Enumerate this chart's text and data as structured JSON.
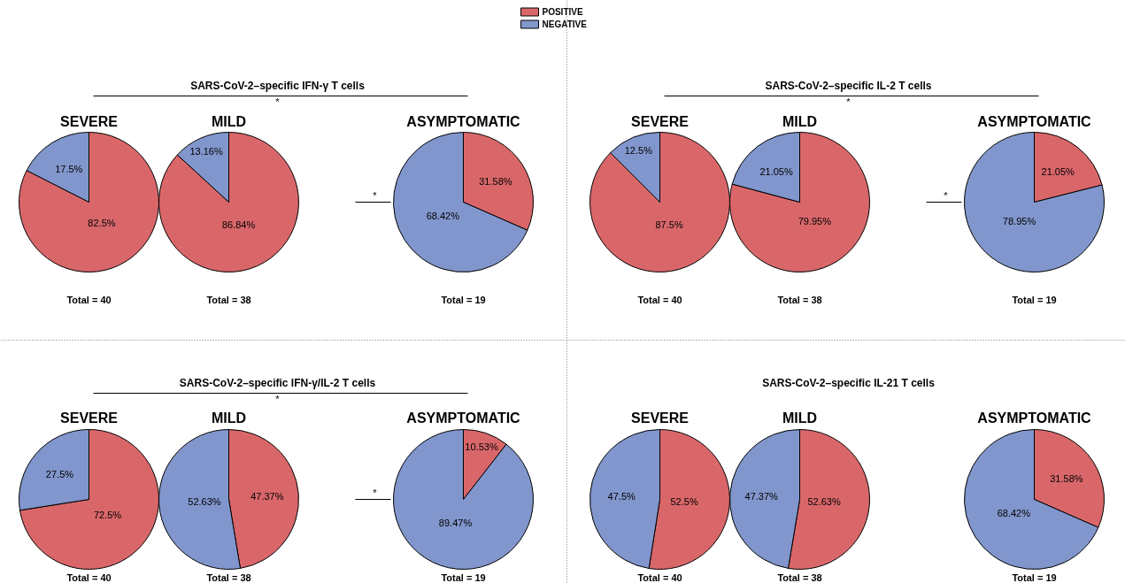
{
  "chart_data": [
    {
      "type": "pie",
      "subtitle": "SEVERE",
      "categories": [
        "POSITIVE",
        "NEGATIVE"
      ],
      "values": [
        82.5,
        17.5
      ],
      "colors": [
        "#d9676a",
        "#8196cc"
      ],
      "value_labels": [
        "82.5%",
        "17.5%"
      ],
      "annotations": [
        "Total = 40"
      ],
      "legend": "top"
    },
    {
      "type": "pie",
      "title": "SARS-CoV-2–specific IFN-γ T cells",
      "subtitle": "MILD",
      "values": [
        86.84,
        13.16
      ],
      "colors": [
        "#d9676a",
        "#8196cc"
      ],
      "value_labels": [
        "86.84%",
        "13.16%"
      ],
      "annotations": [
        "Total = 38",
        "*",
        "*"
      ]
    },
    {
      "type": "pie",
      "subtitle": "ASYMPTOMATIC",
      "values": [
        31.58,
        68.42
      ],
      "colors": [
        "#d9676a",
        "#8196cc"
      ],
      "value_labels": [
        "31.58%",
        "68.42%"
      ],
      "annotations": [
        "Total = 19"
      ]
    },
    {
      "type": "pie",
      "subtitle": "SEVERE",
      "values": [
        87.5,
        12.5
      ],
      "colors": [
        "#d9676a",
        "#8196cc"
      ],
      "value_labels": [
        "87.5%",
        "12.5%"
      ],
      "annotations": [
        "Total = 40"
      ]
    },
    {
      "type": "pie",
      "title": "SARS-CoV-2–specific IL-2 T cells",
      "subtitle": "MILD",
      "values": [
        79.95,
        21.05
      ],
      "colors": [
        "#d9676a",
        "#8196cc"
      ],
      "value_labels": [
        "79.95%",
        "21.05%"
      ],
      "annotations": [
        "Total = 38",
        "*",
        "*"
      ]
    },
    {
      "type": "pie",
      "subtitle": "ASYMPTOMATIC",
      "values": [
        21.05,
        78.95
      ],
      "colors": [
        "#d9676a",
        "#8196cc"
      ],
      "value_labels": [
        "21.05%",
        "78.95%"
      ],
      "annotations": [
        "Total = 19"
      ]
    },
    {
      "type": "pie",
      "subtitle": "SEVERE",
      "values": [
        72.5,
        27.5
      ],
      "colors": [
        "#d9676a",
        "#8196cc"
      ],
      "value_labels": [
        "72.5%",
        "27.5%"
      ],
      "annotations": [
        "Total = 40"
      ]
    },
    {
      "type": "pie",
      "title": "SARS-CoV-2–specific IFN-γ/IL-2 T cells",
      "subtitle": "MILD",
      "values": [
        47.37,
        52.63
      ],
      "colors": [
        "#d9676a",
        "#8196cc"
      ],
      "value_labels": [
        "47.37%",
        "52.63%"
      ],
      "annotations": [
        "Total = 38",
        "*",
        "*"
      ]
    },
    {
      "type": "pie",
      "subtitle": "ASYMPTOMATIC",
      "values": [
        10.53,
        89.47
      ],
      "colors": [
        "#d9676a",
        "#8196cc"
      ],
      "value_labels": [
        "10.53%",
        "89.47%"
      ],
      "annotations": [
        "Total = 19"
      ]
    },
    {
      "type": "pie",
      "subtitle": "SEVERE",
      "values": [
        52.5,
        47.5
      ],
      "colors": [
        "#d9676a",
        "#8196cc"
      ],
      "value_labels": [
        "52.5%",
        "47.5%"
      ],
      "annotations": [
        "Total = 40"
      ]
    },
    {
      "type": "pie",
      "title": "SARS-CoV-2–specific IL-21 T cells",
      "subtitle": "MILD",
      "values": [
        52.63,
        47.37
      ],
      "colors": [
        "#d9676a",
        "#8196cc"
      ],
      "value_labels": [
        "52.63%",
        "47.37%"
      ],
      "annotations": [
        "Total = 38"
      ]
    },
    {
      "type": "pie",
      "subtitle": "ASYMPTOMATIC",
      "values": [
        31.58,
        68.42
      ],
      "colors": [
        "#d9676a",
        "#8196cc"
      ],
      "value_labels": [
        "31.58%",
        "68.42%"
      ],
      "annotations": [
        "Total = 19"
      ]
    }
  ]
}
